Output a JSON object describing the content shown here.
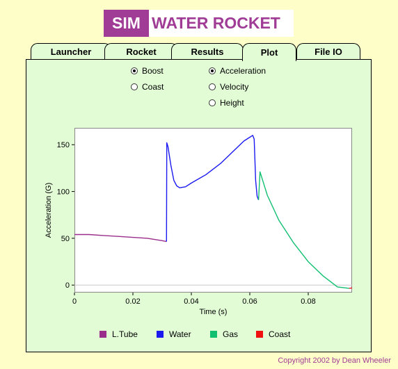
{
  "logo": {
    "sim": "SIM",
    "title": "WATER ROCKET"
  },
  "tabs": [
    {
      "label": "Launcher"
    },
    {
      "label": "Rocket"
    },
    {
      "label": "Results"
    },
    {
      "label": "Plot",
      "active": true
    },
    {
      "label": "File IO"
    }
  ],
  "phase_options": {
    "boost": {
      "label": "Boost",
      "selected": true
    },
    "coast": {
      "label": "Coast",
      "selected": false
    }
  },
  "quantity_options": {
    "acceleration": {
      "label": "Acceleration",
      "selected": true
    },
    "velocity": {
      "label": "Velocity",
      "selected": false
    },
    "height": {
      "label": "Height",
      "selected": false
    }
  },
  "legend": [
    {
      "label": "L.Tube",
      "color": "#9a2c8c"
    },
    {
      "label": "Water",
      "color": "#1a1af0"
    },
    {
      "label": "Gas",
      "color": "#10c070"
    },
    {
      "label": "Coast",
      "color": "#f01010"
    }
  ],
  "copyright": "Copyright 2002 by Dean Wheeler",
  "chart_data": {
    "type": "line",
    "xlabel": "Time (s)",
    "ylabel": "Acceleration (G)",
    "xlim": [
      0,
      0.095
    ],
    "ylim": [
      -8,
      168
    ],
    "xticks": [
      "0",
      "0.02",
      "0.04",
      "0.06",
      "0.08"
    ],
    "yticks": [
      "0",
      "50",
      "100",
      "150"
    ],
    "series": [
      {
        "name": "L.Tube",
        "color": "#9a2c8c",
        "x": [
          0,
          0.005,
          0.01,
          0.015,
          0.02,
          0.025,
          0.03,
          0.0315
        ],
        "y": [
          54,
          54,
          53,
          52,
          51,
          50,
          47.5,
          46.5
        ]
      },
      {
        "name": "Water",
        "color": "#1a1af0",
        "x": [
          0.0315,
          0.0316,
          0.032,
          0.033,
          0.034,
          0.035,
          0.036,
          0.038,
          0.04,
          0.045,
          0.05,
          0.055,
          0.058,
          0.06,
          0.061,
          0.0615,
          0.062,
          0.0625,
          0.063
        ],
        "y": [
          46.5,
          152,
          148,
          128,
          112,
          106,
          104,
          105,
          109,
          118,
          130,
          145,
          154,
          158,
          160,
          156,
          112,
          95,
          91
        ]
      },
      {
        "name": "Gas",
        "color": "#10c070",
        "x": [
          0.063,
          0.0635,
          0.064,
          0.066,
          0.07,
          0.075,
          0.08,
          0.085,
          0.09,
          0.094
        ],
        "y": [
          91,
          121,
          116,
          96,
          69,
          45,
          25,
          10,
          -2,
          -3.5
        ]
      },
      {
        "name": "Coast",
        "color": "#f01010",
        "x": [
          0.094,
          0.095
        ],
        "y": [
          -3.5,
          -3
        ]
      }
    ]
  }
}
